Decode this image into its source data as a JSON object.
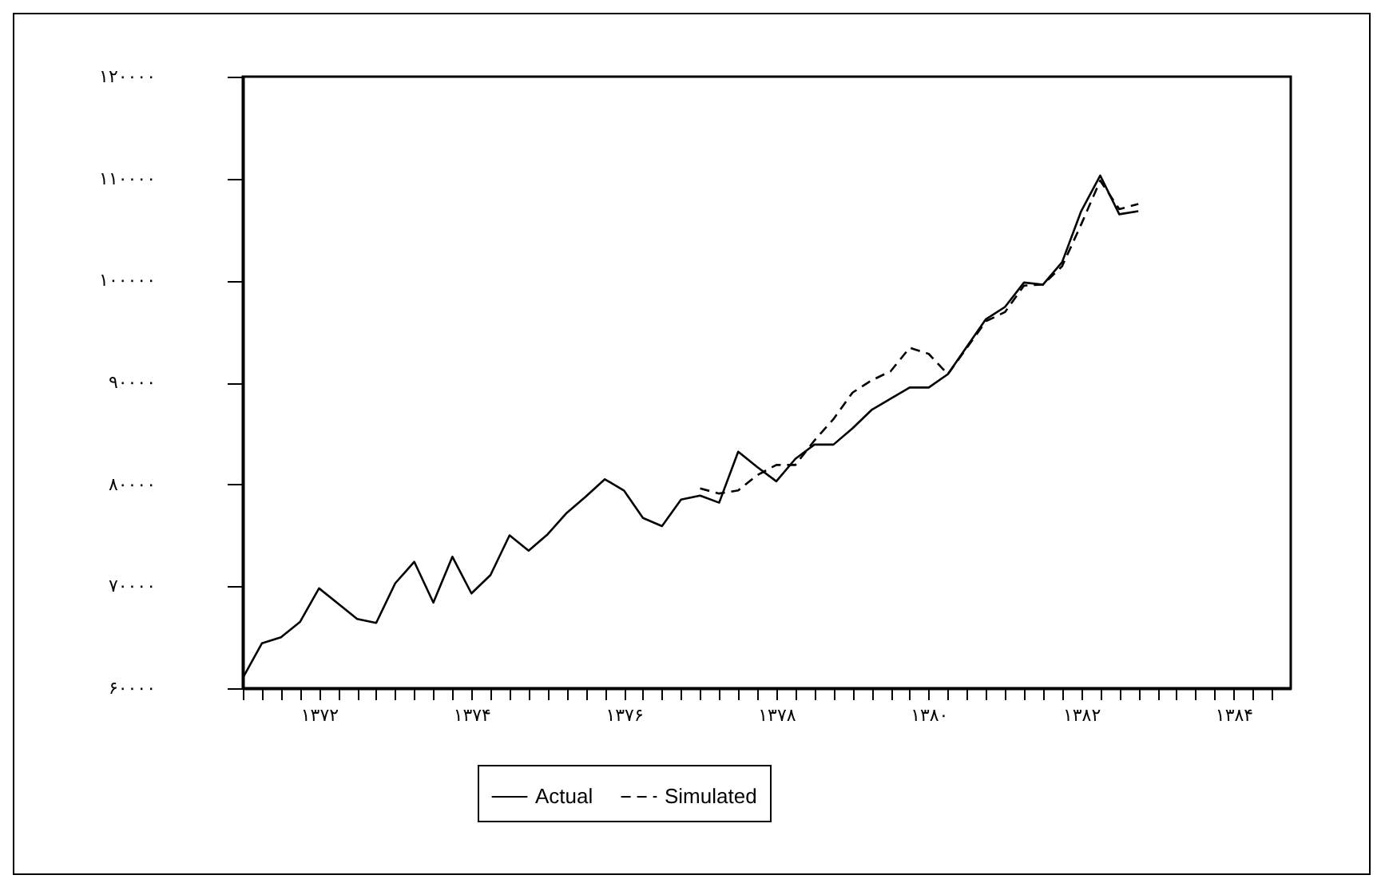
{
  "chart_data": {
    "type": "line",
    "legend": "bottom",
    "grid": false,
    "x": [
      1371,
      1371.25,
      1371.5,
      1371.75,
      1372,
      1372.25,
      1372.5,
      1372.75,
      1373,
      1373.25,
      1373.5,
      1373.75,
      1374,
      1374.25,
      1374.5,
      1374.75,
      1375,
      1375.25,
      1375.5,
      1375.75,
      1376,
      1376.25,
      1376.5,
      1376.75,
      1377,
      1377.25,
      1377.5,
      1377.75,
      1378,
      1378.25,
      1378.5,
      1378.75,
      1379,
      1379.25,
      1379.5,
      1379.75,
      1380,
      1380.25,
      1380.5,
      1380.75,
      1381,
      1381.25,
      1381.5,
      1381.75,
      1382,
      1382.25,
      1382.5,
      1382.75
    ],
    "series": [
      {
        "name": "Actual",
        "color": "#000000",
        "line_style": "solid",
        "values": [
          61000,
          64400,
          65000,
          66500,
          69800,
          68300,
          66800,
          66400,
          70300,
          72400,
          68400,
          72900,
          69300,
          71100,
          75000,
          73500,
          75100,
          77200,
          78800,
          80500,
          79400,
          76700,
          75900,
          78500,
          78900,
          78200,
          83200,
          81700,
          80300,
          82500,
          83900,
          83900,
          85500,
          87300,
          88400,
          89500,
          89500,
          90800,
          93500,
          96200,
          97400,
          99800,
          99600,
          101800,
          106800,
          110300,
          106500,
          106800
        ]
      },
      {
        "name": "Simulated",
        "color": "#000000",
        "line_style": "dashed",
        "values": [
          null,
          null,
          null,
          null,
          null,
          null,
          null,
          null,
          null,
          null,
          null,
          null,
          null,
          null,
          null,
          null,
          null,
          null,
          null,
          null,
          null,
          null,
          null,
          null,
          79600,
          79100,
          79400,
          80900,
          81900,
          81900,
          84300,
          86400,
          89000,
          90200,
          91100,
          93400,
          92800,
          90800,
          93400,
          96000,
          96900,
          99500,
          99600,
          101400,
          105500,
          109800,
          107000,
          107500
        ]
      }
    ],
    "xlim": [
      1371,
      1384.75
    ],
    "xticks": [
      {
        "value": 1371,
        "label": null
      },
      {
        "value": 1371.25,
        "label": null
      },
      {
        "value": 1371.5,
        "label": null
      },
      {
        "value": 1371.75,
        "label": null
      },
      {
        "value": 1372,
        "label": "۱۳۷۲"
      },
      {
        "value": 1372.25,
        "label": null
      },
      {
        "value": 1372.5,
        "label": null
      },
      {
        "value": 1372.75,
        "label": null
      },
      {
        "value": 1373,
        "label": null
      },
      {
        "value": 1373.25,
        "label": null
      },
      {
        "value": 1373.5,
        "label": null
      },
      {
        "value": 1373.75,
        "label": null
      },
      {
        "value": 1374,
        "label": "۱۳۷۴"
      },
      {
        "value": 1374.25,
        "label": null
      },
      {
        "value": 1374.5,
        "label": null
      },
      {
        "value": 1374.75,
        "label": null
      },
      {
        "value": 1375,
        "label": null
      },
      {
        "value": 1375.25,
        "label": null
      },
      {
        "value": 1375.5,
        "label": null
      },
      {
        "value": 1375.75,
        "label": null
      },
      {
        "value": 1376,
        "label": "۱۳۷۶"
      },
      {
        "value": 1376.25,
        "label": null
      },
      {
        "value": 1376.5,
        "label": null
      },
      {
        "value": 1376.75,
        "label": null
      },
      {
        "value": 1377,
        "label": null
      },
      {
        "value": 1377.25,
        "label": null
      },
      {
        "value": 1377.5,
        "label": null
      },
      {
        "value": 1377.75,
        "label": null
      },
      {
        "value": 1378,
        "label": "۱۳۷۸"
      },
      {
        "value": 1378.25,
        "label": null
      },
      {
        "value": 1378.5,
        "label": null
      },
      {
        "value": 1378.75,
        "label": null
      },
      {
        "value": 1379,
        "label": null
      },
      {
        "value": 1379.25,
        "label": null
      },
      {
        "value": 1379.5,
        "label": null
      },
      {
        "value": 1379.75,
        "label": null
      },
      {
        "value": 1380,
        "label": "۱۳۸۰"
      },
      {
        "value": 1380.25,
        "label": null
      },
      {
        "value": 1380.5,
        "label": null
      },
      {
        "value": 1380.75,
        "label": null
      },
      {
        "value": 1381,
        "label": null
      },
      {
        "value": 1381.25,
        "label": null
      },
      {
        "value": 1381.5,
        "label": null
      },
      {
        "value": 1381.75,
        "label": null
      },
      {
        "value": 1382,
        "label": "۱۳۸۲"
      },
      {
        "value": 1382.25,
        "label": null
      },
      {
        "value": 1382.5,
        "label": null
      },
      {
        "value": 1382.75,
        "label": null
      },
      {
        "value": 1383,
        "label": null
      },
      {
        "value": 1383.25,
        "label": null
      },
      {
        "value": 1383.5,
        "label": null
      },
      {
        "value": 1383.75,
        "label": null
      },
      {
        "value": 1384,
        "label": "۱۳۸۴"
      },
      {
        "value": 1384.25,
        "label": null
      },
      {
        "value": 1384.5,
        "label": null
      }
    ],
    "ylim": [
      60000,
      120000
    ],
    "yticks": [
      {
        "value": 60000,
        "label": "۶۰۰۰۰"
      },
      {
        "value": 70000,
        "label": "۷۰۰۰۰"
      },
      {
        "value": 80000,
        "label": "۸۰۰۰۰"
      },
      {
        "value": 90000,
        "label": "۹۰۰۰۰"
      },
      {
        "value": 100000,
        "label": "۱۰۰۰۰۰"
      },
      {
        "value": 110000,
        "label": "۱۱۰۰۰۰"
      },
      {
        "value": 120000,
        "label": "۱۲۰۰۰۰"
      }
    ]
  }
}
